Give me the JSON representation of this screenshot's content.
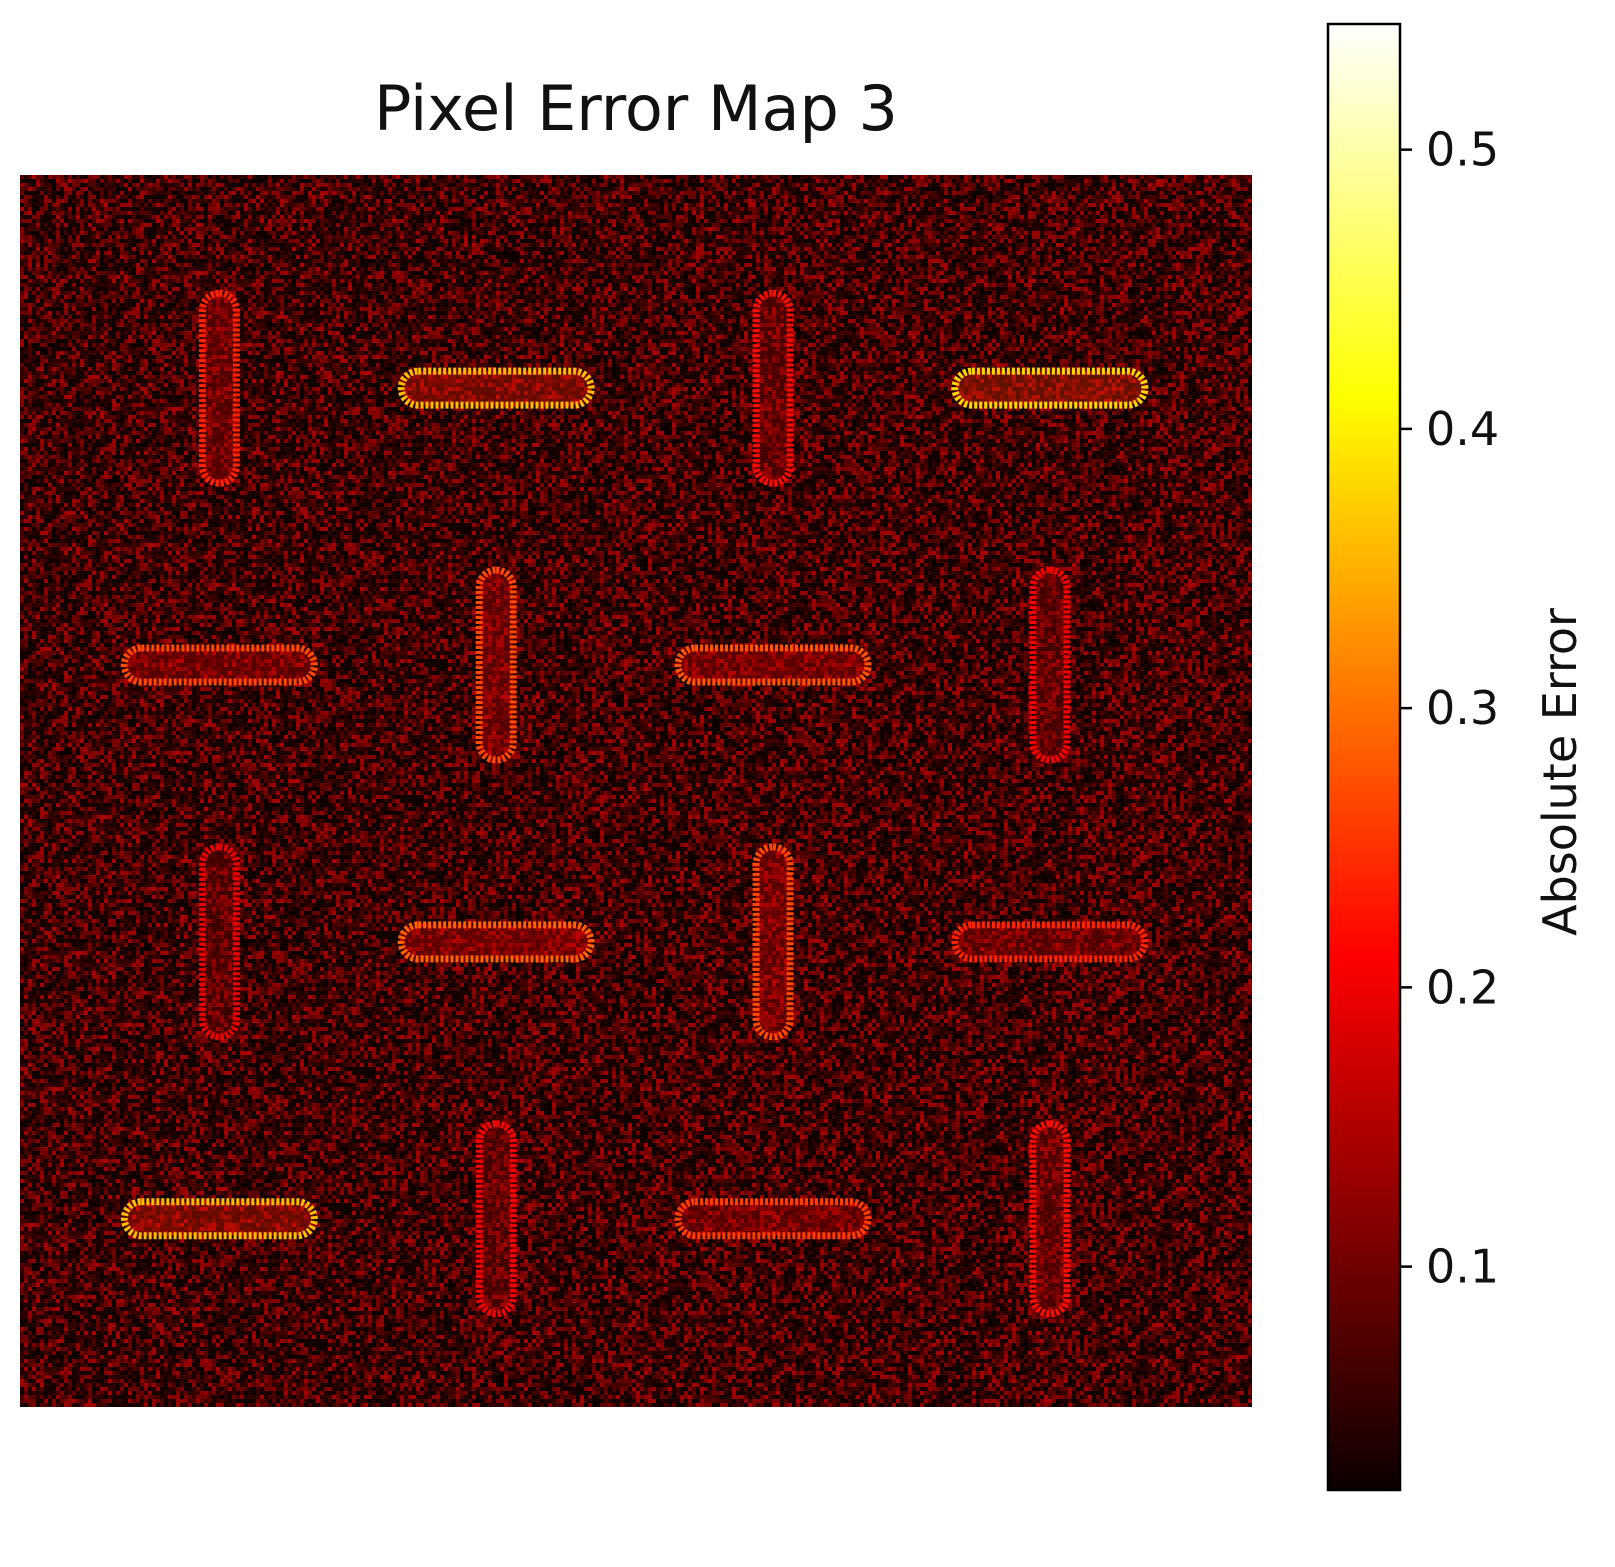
{
  "chart_data": {
    "type": "heatmap",
    "title": "Pixel Error Map 3",
    "colorbar": {
      "label": "Absolute Error",
      "colormap": "hot",
      "vmin": 0.02,
      "vmax": 0.545,
      "ticks": [
        0.1,
        0.2,
        0.3,
        0.4,
        0.5
      ],
      "tick_labels": [
        "0.1",
        "0.2",
        "0.3",
        "0.4",
        "0.5"
      ]
    },
    "background_error": {
      "mean": 0.07,
      "max": 0.14
    },
    "grid": {
      "rows": 4,
      "cols": 4
    },
    "features": [
      {
        "row": 0,
        "col": 0,
        "orientation": "vertical",
        "peak_error": 0.24
      },
      {
        "row": 0,
        "col": 1,
        "orientation": "horizontal",
        "peak_error": 0.36
      },
      {
        "row": 0,
        "col": 2,
        "orientation": "vertical",
        "peak_error": 0.22
      },
      {
        "row": 0,
        "col": 3,
        "orientation": "horizontal",
        "peak_error": 0.38
      },
      {
        "row": 1,
        "col": 0,
        "orientation": "horizontal",
        "peak_error": 0.27
      },
      {
        "row": 1,
        "col": 1,
        "orientation": "vertical",
        "peak_error": 0.27
      },
      {
        "row": 1,
        "col": 2,
        "orientation": "horizontal",
        "peak_error": 0.28
      },
      {
        "row": 1,
        "col": 3,
        "orientation": "vertical",
        "peak_error": 0.2
      },
      {
        "row": 2,
        "col": 0,
        "orientation": "vertical",
        "peak_error": 0.19
      },
      {
        "row": 2,
        "col": 1,
        "orientation": "horizontal",
        "peak_error": 0.29
      },
      {
        "row": 2,
        "col": 2,
        "orientation": "vertical",
        "peak_error": 0.27
      },
      {
        "row": 2,
        "col": 3,
        "orientation": "horizontal",
        "peak_error": 0.24
      },
      {
        "row": 3,
        "col": 0,
        "orientation": "horizontal",
        "peak_error": 0.36
      },
      {
        "row": 3,
        "col": 1,
        "orientation": "vertical",
        "peak_error": 0.2
      },
      {
        "row": 3,
        "col": 2,
        "orientation": "horizontal",
        "peak_error": 0.26
      },
      {
        "row": 3,
        "col": 3,
        "orientation": "vertical",
        "peak_error": 0.22
      }
    ]
  }
}
